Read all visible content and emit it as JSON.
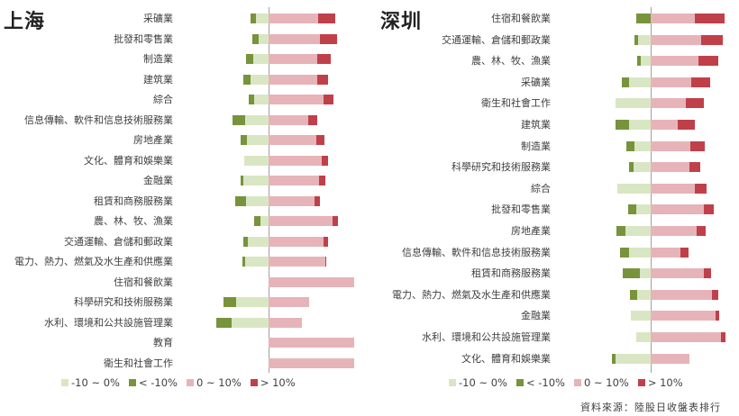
{
  "colors": {
    "neg_small": "#d9e6c3",
    "neg_large": "#77933c",
    "pos_small": "#e6b4b8",
    "pos_large": "#c0404a",
    "axis": "#a0a0a0"
  },
  "legend": [
    {
      "label": "-10 ~ 0%",
      "key": "neg_small"
    },
    {
      "label": "< -10%",
      "key": "neg_large"
    },
    {
      "label": "0 ~ 10%",
      "key": "pos_small"
    },
    {
      "label": "> 10%",
      "key": "pos_large"
    }
  ],
  "source": "資料來源：陸股日收盤表排行",
  "chart_data": [
    {
      "type": "bar",
      "orientation": "horizontal-diverging-stacked",
      "title": "上海",
      "unit": "% of stocks",
      "series_names": [
        "< -10%",
        "-10 ~ 0%",
        "0 ~ 10%",
        "> 10%"
      ],
      "categories": [
        "采礦業",
        "批發和零售業",
        "制造業",
        "建筑業",
        "綜合",
        "信息傳輸、軟件和信息技術服務業",
        "房地產業",
        "文化、體育和娛樂業",
        "金融業",
        "租賃和商務服務業",
        "農、林、牧、漁業",
        "交通運輸、倉儲和郵政業",
        "電力、熱力、燃氣及水生產和供應業",
        "住宿和餐飲業",
        "科學研究和技術服務業",
        "水利、環境和公共設施管理業",
        "教育",
        "衛生和社會工作"
      ],
      "series": [
        {
          "name": "< -10%",
          "values": [
            6,
            7,
            8,
            8,
            6,
            15,
            8,
            0,
            4,
            13,
            8,
            5,
            4,
            0,
            15,
            18,
            0,
            0
          ]
        },
        {
          "name": "-10 ~ 0%",
          "values": [
            15,
            12,
            18,
            21,
            17,
            27,
            25,
            28,
            29,
            26,
            9,
            24,
            27,
            0,
            38,
            43,
            0,
            0
          ]
        },
        {
          "name": "0 ~ 10%",
          "values": [
            58,
            60,
            57,
            57,
            64,
            46,
            56,
            62,
            59,
            54,
            75,
            64,
            66,
            100,
            47,
            39,
            100,
            100
          ]
        },
        {
          "name": "> 10%",
          "values": [
            20,
            20,
            16,
            13,
            12,
            11,
            9,
            8,
            7,
            6,
            6,
            5,
            1,
            0,
            0,
            0,
            0,
            0
          ]
        }
      ],
      "xlim": [
        -65,
        100
      ],
      "legend_position": "bottom"
    },
    {
      "type": "bar",
      "orientation": "horizontal-diverging-stacked",
      "title": "深圳",
      "unit": "% of stocks",
      "series_names": [
        "< -10%",
        "-10 ~ 0%",
        "0 ~ 10%",
        "> 10%"
      ],
      "categories": [
        "住宿和餐飲業",
        "交通運輸、倉儲和郵政業",
        "農、林、牧、漁業",
        "采礦業",
        "衛生和社會工作",
        "建筑業",
        "制造業",
        "科學研究和技術服務業",
        "綜合",
        "批發和零售業",
        "房地產業",
        "信息傳輸、軟件和信息技術服務業",
        "租賃和商務服務業",
        "電力、熱力、燃氣及水生產和供應業",
        "金融業",
        "水利、環境和公共設施管理業",
        "文化、體育和娛樂業"
      ],
      "series": [
        {
          "name": "< -10%",
          "values": [
            16,
            4,
            4,
            9,
            0,
            16,
            10,
            6,
            0,
            10,
            10,
            11,
            20,
            8,
            0,
            0,
            4
          ]
        },
        {
          "name": "-10 ~ 0%",
          "values": [
            0,
            14,
            11,
            24,
            40,
            24,
            18,
            19,
            38,
            16,
            29,
            24,
            12,
            15,
            22,
            16,
            40
          ]
        },
        {
          "name": "0 ~ 10%",
          "values": [
            50,
            57,
            54,
            46,
            40,
            31,
            45,
            44,
            50,
            60,
            52,
            34,
            60,
            69,
            73,
            80,
            44
          ]
        },
        {
          "name": "> 10%",
          "values": [
            34,
            25,
            23,
            21,
            20,
            19,
            16,
            12,
            13,
            11,
            10,
            9,
            8,
            8,
            5,
            5,
            0
          ]
        }
      ],
      "xlim": [
        -45,
        85
      ],
      "legend_position": "bottom"
    }
  ]
}
